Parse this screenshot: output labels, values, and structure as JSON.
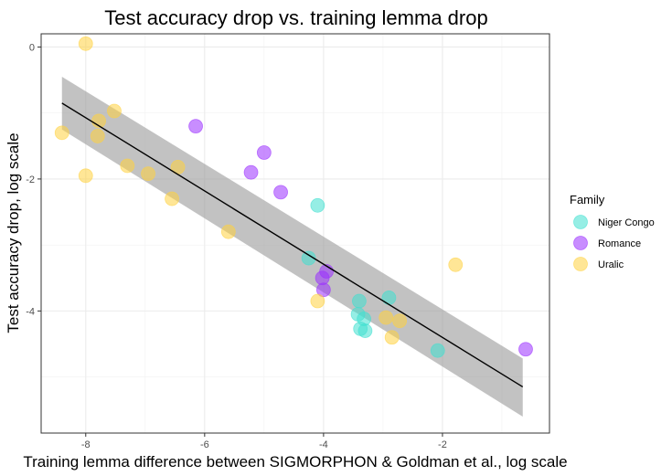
{
  "chart_data": {
    "type": "scatter",
    "title": "Test accuracy drop vs. training lemma drop",
    "xlabel": "Training lemma difference between SIGMORPHON & Goldman et al., log scale",
    "ylabel": "Test accuracy drop, log scale",
    "xlim": [
      -8.75,
      -0.2
    ],
    "ylim": [
      -5.85,
      0.2
    ],
    "x_ticks": [
      -8,
      -6,
      -4,
      -2
    ],
    "y_ticks": [
      0,
      -2,
      -4
    ],
    "x_tick_labels": [
      "-8",
      "-6",
      "-4",
      "-2"
    ],
    "y_tick_labels": [
      "0",
      "-2",
      "-4"
    ],
    "grid": true,
    "legend": {
      "title": "Family",
      "position": "right"
    },
    "fit_line": {
      "x": [
        -8.4,
        -0.65
      ],
      "y": [
        -0.85,
        -5.15
      ],
      "band_upper": [
        -0.45,
        -4.72
      ],
      "band_lower": [
        -1.25,
        -5.6
      ]
    },
    "series": [
      {
        "name": "Niger Congo",
        "color": "#40E0D0",
        "points": [
          {
            "x": -4.1,
            "y": -2.4
          },
          {
            "x": -4.25,
            "y": -3.2
          },
          {
            "x": -3.4,
            "y": -3.85
          },
          {
            "x": -3.42,
            "y": -4.05
          },
          {
            "x": -3.32,
            "y": -4.12
          },
          {
            "x": -3.38,
            "y": -4.27
          },
          {
            "x": -3.3,
            "y": -4.3
          },
          {
            "x": -2.9,
            "y": -3.8
          },
          {
            "x": -2.08,
            "y": -4.6
          }
        ]
      },
      {
        "name": "Romance",
        "color": "#9B30FF",
        "points": [
          {
            "x": -6.15,
            "y": -1.2
          },
          {
            "x": -5.0,
            "y": -1.6
          },
          {
            "x": -5.22,
            "y": -1.9
          },
          {
            "x": -4.72,
            "y": -2.2
          },
          {
            "x": -3.95,
            "y": -3.4
          },
          {
            "x": -4.02,
            "y": -3.5
          },
          {
            "x": -4.0,
            "y": -3.68
          },
          {
            "x": -0.6,
            "y": -4.58
          }
        ]
      },
      {
        "name": "Uralic",
        "color": "#FFD23F",
        "points": [
          {
            "x": -8.0,
            "y": 0.05
          },
          {
            "x": -8.4,
            "y": -1.3
          },
          {
            "x": -7.52,
            "y": -0.97
          },
          {
            "x": -7.78,
            "y": -1.12
          },
          {
            "x": -7.8,
            "y": -1.35
          },
          {
            "x": -7.3,
            "y": -1.8
          },
          {
            "x": -8.0,
            "y": -1.95
          },
          {
            "x": -6.95,
            "y": -1.92
          },
          {
            "x": -6.45,
            "y": -1.82
          },
          {
            "x": -6.55,
            "y": -2.3
          },
          {
            "x": -5.6,
            "y": -2.8
          },
          {
            "x": -4.1,
            "y": -3.85
          },
          {
            "x": -2.95,
            "y": -4.1
          },
          {
            "x": -2.72,
            "y": -4.15
          },
          {
            "x": -2.85,
            "y": -4.4
          },
          {
            "x": -1.78,
            "y": -3.3
          }
        ]
      }
    ]
  }
}
